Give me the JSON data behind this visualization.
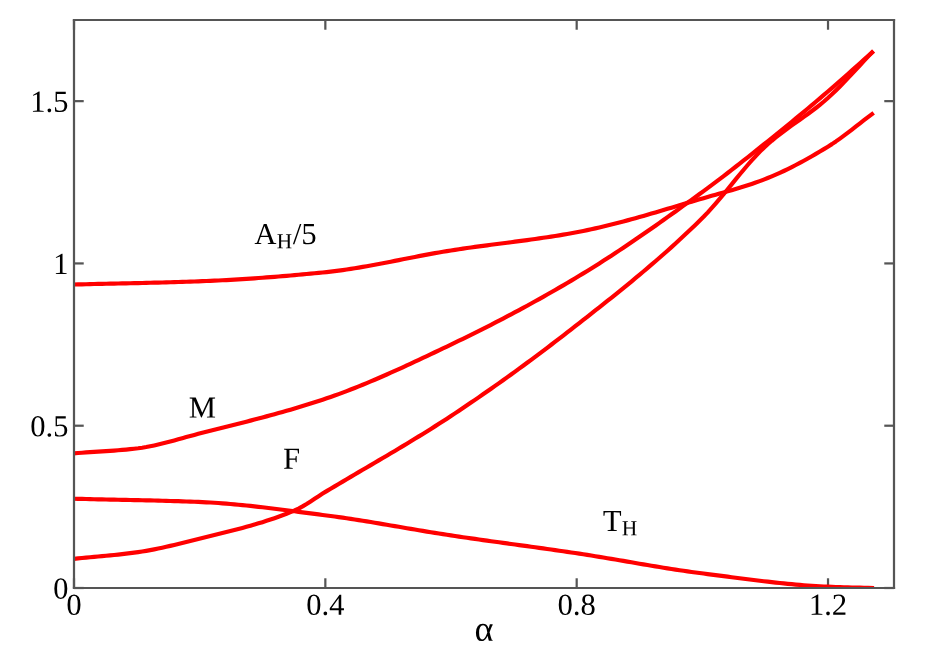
{
  "chart_data": {
    "type": "line",
    "xlabel": "α",
    "xlim": [
      0,
      1.305
    ],
    "ylim": [
      0,
      1.75
    ],
    "xticks": [
      0,
      0.4,
      0.8,
      1.2
    ],
    "yticks": [
      0,
      0.5,
      1,
      1.5
    ],
    "grid": false,
    "legend": false,
    "marker": "none",
    "line_style": "solid",
    "series": [
      {
        "name": "A$_{H}$/5",
        "color": "#ff0000",
        "x": [
          0,
          0.2,
          0.4,
          0.6,
          0.8,
          1.0,
          1.1,
          1.2,
          1.27
        ],
        "values": [
          0.935,
          0.945,
          0.973,
          1.04,
          1.096,
          1.2,
          1.26,
          1.36,
          1.46
        ]
      },
      {
        "name": "M",
        "color": "#ff0000",
        "x": [
          0,
          0.1,
          0.2,
          0.4,
          0.6,
          0.8,
          1.0,
          1.1,
          1.2,
          1.27
        ],
        "values": [
          0.415,
          0.43,
          0.476,
          0.583,
          0.75,
          0.957,
          1.22,
          1.37,
          1.53,
          1.65
        ]
      },
      {
        "name": "F",
        "color": "#ff0000",
        "x": [
          0,
          0.1,
          0.2,
          0.35,
          0.4,
          0.6,
          0.8,
          1.0,
          1.1,
          1.2,
          1.27
        ],
        "values": [
          0.09,
          0.11,
          0.152,
          0.238,
          0.296,
          0.53,
          0.81,
          1.14,
          1.36,
          1.51,
          1.65
        ]
      },
      {
        "name": "T$_{H}$",
        "color": "#ff0000",
        "x": [
          0,
          0.2,
          0.4,
          0.6,
          0.8,
          1.0,
          1.2,
          1.27
        ],
        "values": [
          0.275,
          0.265,
          0.224,
          0.162,
          0.107,
          0.045,
          0.004,
          0
        ]
      }
    ]
  }
}
